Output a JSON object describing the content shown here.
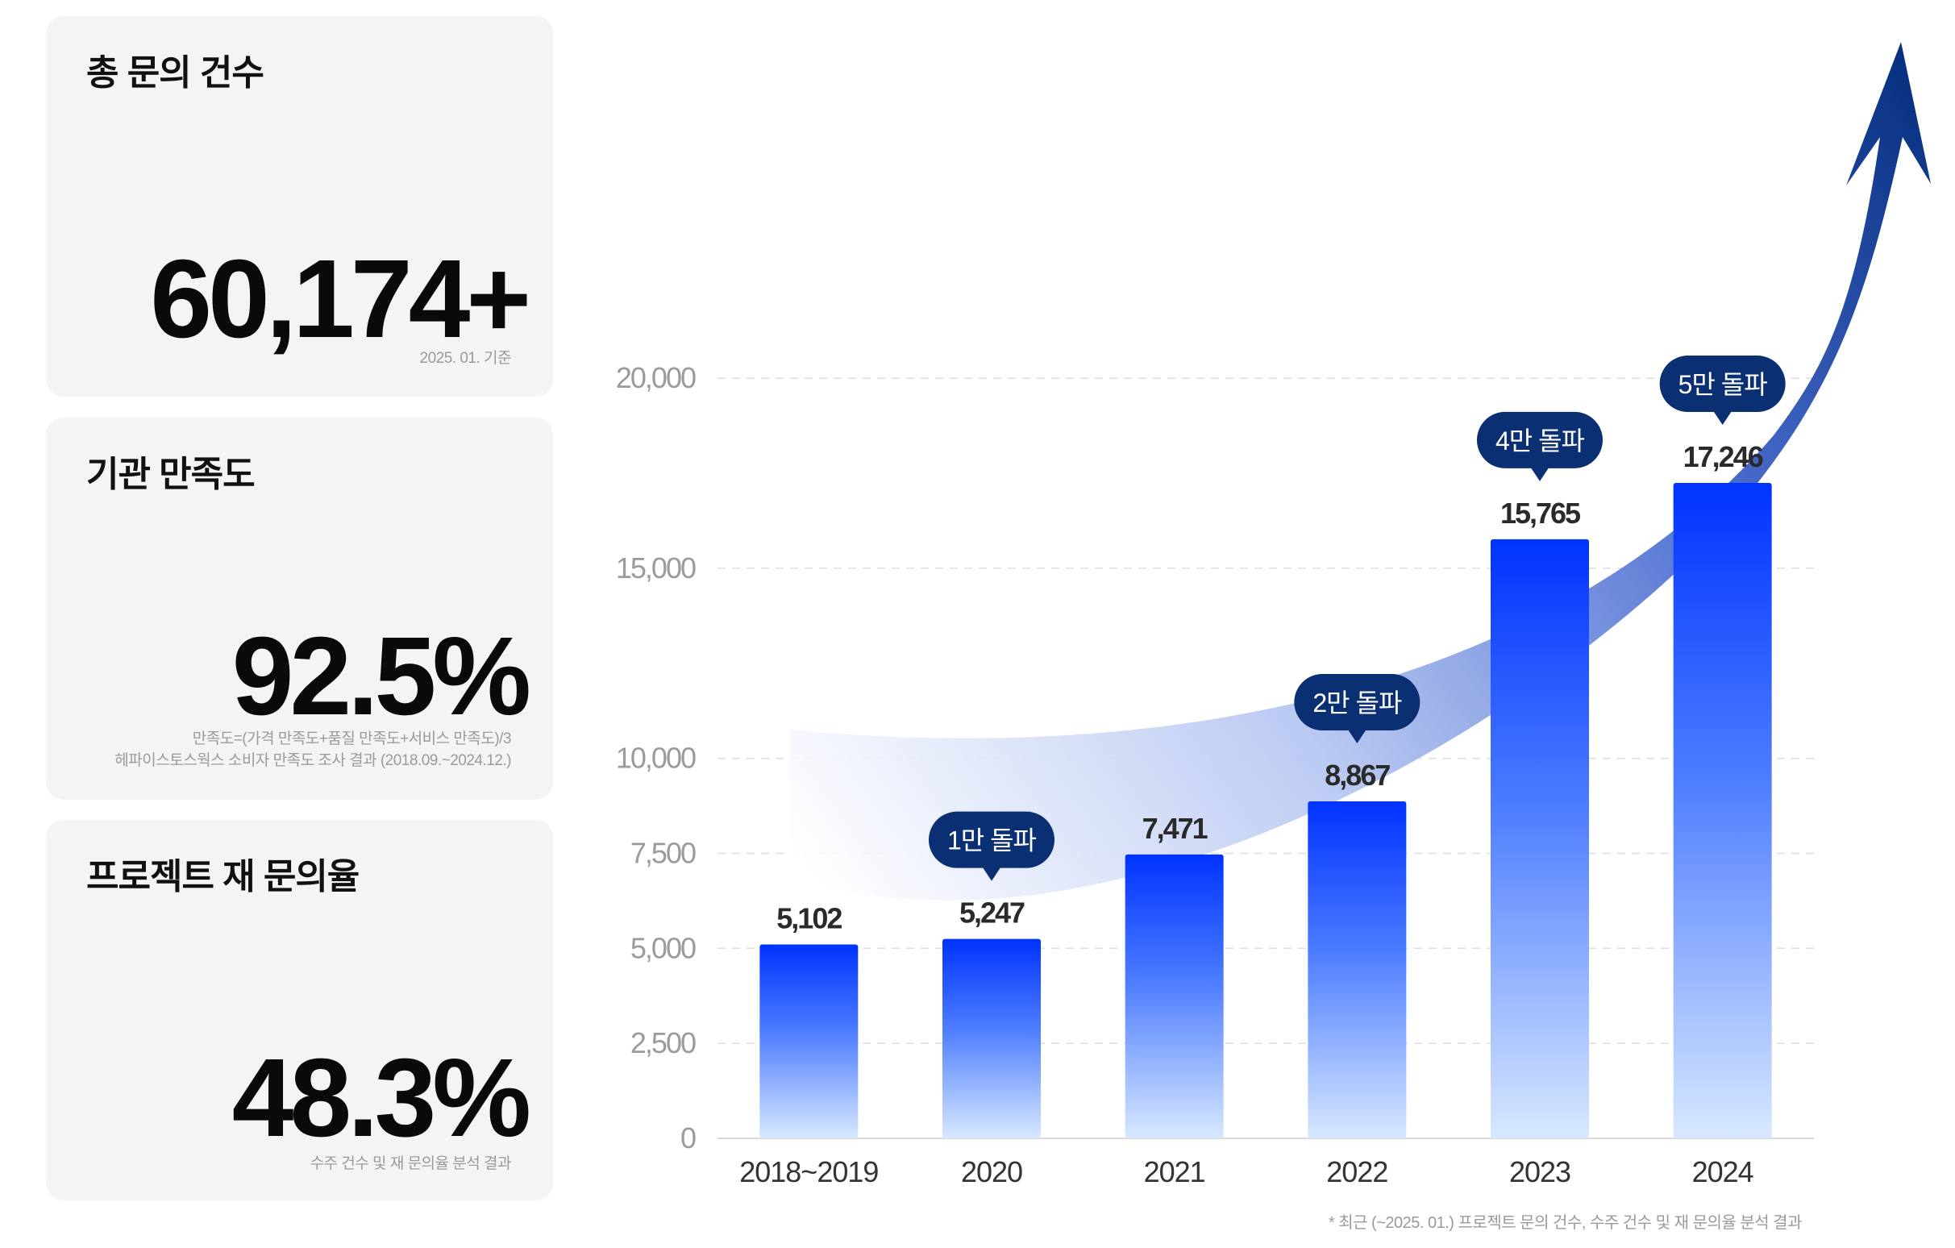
{
  "cards": [
    {
      "title": "총 문의 건수",
      "value": "60,174+",
      "note_lines": [
        "2025. 01. 기준"
      ]
    },
    {
      "title": "기관 만족도",
      "value": "92.5%",
      "note_lines": [
        "만족도=(가격 만족도+품질 만족도+서비스 만족도)/3",
        "헤파이스토스웍스 소비자 만족도 조사 결과 (2018.09.~2024.12.)"
      ]
    },
    {
      "title": "프로젝트 재 문의율",
      "value": "48.3%",
      "note_lines": [
        "수주 건수 및 재 문의율 분석 결과"
      ]
    }
  ],
  "chart_data": {
    "type": "bar",
    "categories": [
      "2018~2019",
      "2020",
      "2021",
      "2022",
      "2023",
      "2024"
    ],
    "values": [
      5102,
      5247,
      7471,
      8867,
      15765,
      17246
    ],
    "value_labels": [
      "5,102",
      "5,247",
      "7,471",
      "8,867",
      "15,765",
      "17,246"
    ],
    "y_ticks": [
      0,
      2500,
      5000,
      7500,
      10000,
      15000,
      20000
    ],
    "y_tick_labels": [
      "0",
      "2,500",
      "5,000",
      "7,500",
      "10,000",
      "15,000",
      "20,000"
    ],
    "ylim": [
      0,
      20000
    ],
    "grid": true,
    "milestones": [
      {
        "category": "2020",
        "label": "1만 돌파"
      },
      {
        "category": "2022",
        "label": "2만 돌파"
      },
      {
        "category": "2023",
        "label": "4만 돌파"
      },
      {
        "category": "2024",
        "label": "5만 돌파"
      }
    ],
    "colors": {
      "bar_top": "#0033ff",
      "bar_bottom": "#d8e8ff",
      "milestone": "#0b2f73",
      "arrow": "#05307f"
    }
  },
  "footnote": "*  최근 (~2025. 01.) 프로젝트 문의 건수, 수주 건수 및 재 문의율 분석 결과"
}
